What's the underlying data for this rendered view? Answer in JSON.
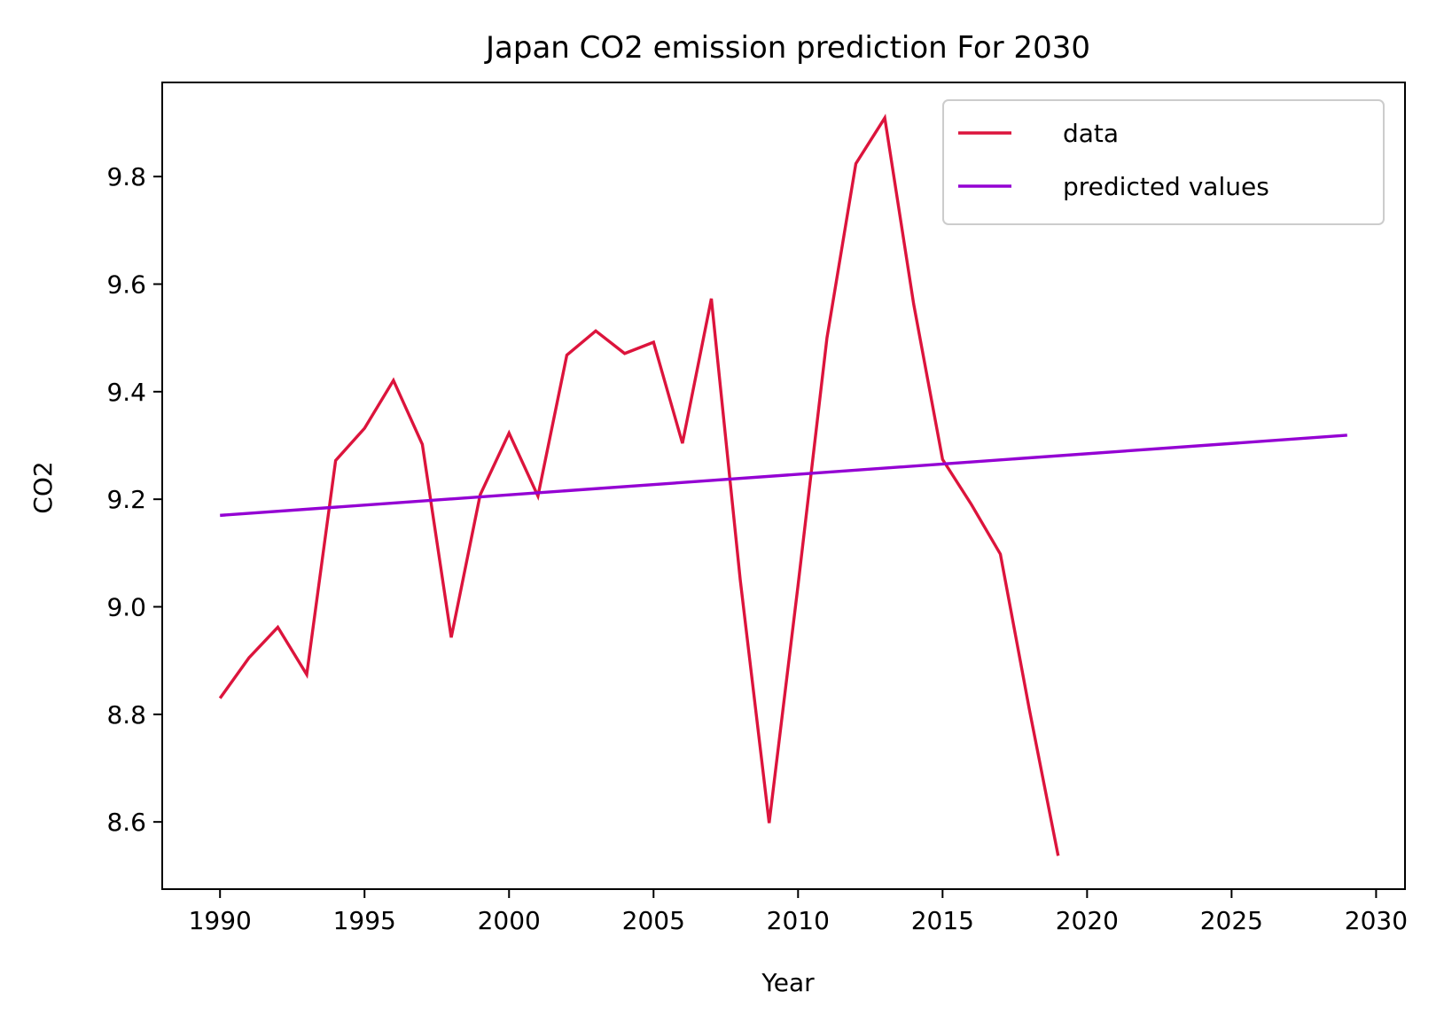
{
  "chart_data": {
    "type": "line",
    "title": "Japan CO2 emission prediction For 2030",
    "xlabel": "Year",
    "ylabel": "CO2",
    "xlim": [
      1988,
      2031
    ],
    "ylim": [
      8.475,
      9.975
    ],
    "xticks": [
      1990,
      1995,
      2000,
      2005,
      2010,
      2015,
      2020,
      2025,
      2030
    ],
    "xtick_labels": [
      "1990",
      "1995",
      "2000",
      "2005",
      "2010",
      "2015",
      "2020",
      "2025",
      "2030"
    ],
    "yticks": [
      8.6,
      8.8,
      9.0,
      9.2,
      9.4,
      9.6,
      9.8
    ],
    "ytick_labels": [
      "8.6",
      "8.8",
      "9.0",
      "9.2",
      "9.4",
      "9.6",
      "9.8"
    ],
    "grid": false,
    "legend_position": "top-right",
    "series": [
      {
        "name": "data",
        "color": "#dc143c",
        "x": [
          1990,
          1991,
          1992,
          1993,
          1994,
          1995,
          1996,
          1997,
          1998,
          1999,
          2000,
          2001,
          2002,
          2003,
          2004,
          2005,
          2006,
          2007,
          2008,
          2009,
          2010,
          2011,
          2012,
          2013,
          2014,
          2015,
          2016,
          2017,
          2018,
          2019
        ],
        "y": [
          8.83,
          8.905,
          8.962,
          8.874,
          9.272,
          9.332,
          9.421,
          9.302,
          8.943,
          9.208,
          9.323,
          9.206,
          9.468,
          9.513,
          9.471,
          9.492,
          9.304,
          9.573,
          9.05,
          8.598,
          9.04,
          9.5,
          9.824,
          9.909,
          9.563,
          9.274,
          9.19,
          9.098,
          8.81,
          8.537
        ]
      },
      {
        "name": "predicted values",
        "color": "#9400d3",
        "x": [
          1990,
          2029
        ],
        "y": [
          9.17,
          9.319
        ]
      }
    ]
  }
}
